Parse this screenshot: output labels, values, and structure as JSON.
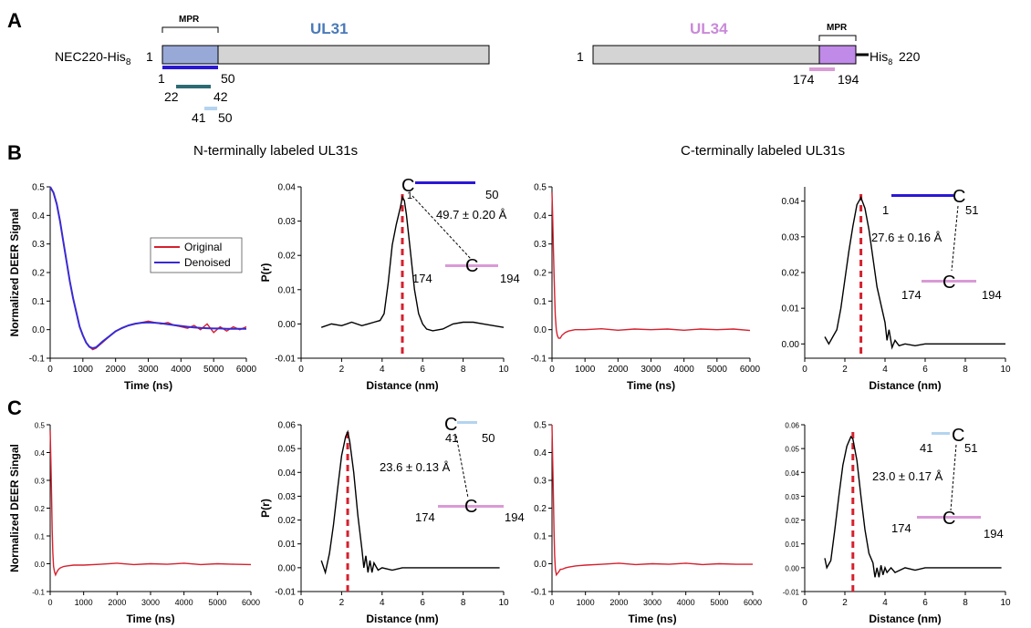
{
  "panel_a": {
    "letter": "A",
    "construct": "NEC220-His",
    "construct_sub": "8",
    "ul31": {
      "name": "UL31",
      "start": "1",
      "mpr": "MPR",
      "seg_1_50": [
        "1",
        "50"
      ],
      "seg_22_42": [
        "22",
        "42"
      ],
      "seg_41_50": [
        "41",
        "50"
      ]
    },
    "ul34": {
      "name": "UL34",
      "start": "1",
      "mpr": "MPR",
      "tag": "His",
      "tag_sub": "8",
      "end": "220",
      "seg_174_194": [
        "174",
        "194"
      ]
    },
    "colors": {
      "ul31_mpr": "#98a9d8",
      "ul34_mpr": "#c08ae8",
      "bar_blue": "#2a17d6",
      "bar_teal": "#2d6b73",
      "bar_lightblue": "#b4d4ef",
      "bar_pink": "#d99ad6",
      "body": "#d4d4d4"
    }
  },
  "panel_b": {
    "letter": "B",
    "left_title": "N-terminally labeled UL31s",
    "right_title": "C-terminally labeled UL31s",
    "legend": [
      "Original",
      "Denoised"
    ]
  },
  "panel_c": {
    "letter": "C"
  },
  "labels": {
    "nlab1": {
      "c": "C",
      "a": "1",
      "b": "50",
      "dist": "49.7 ± 0.20 Å",
      "p": "174",
      "q": "194",
      "c2": "C"
    },
    "clab1": {
      "a": "1",
      "c": "C",
      "b": "51",
      "dist": "27.6 ± 0.16 Å",
      "p": "174",
      "q": "194",
      "c2": "C"
    },
    "nlab2": {
      "c": "C",
      "a": "41",
      "b": "50",
      "dist": "23.6 ± 0.13 Å",
      "p": "174",
      "q": "194",
      "c2": "C"
    },
    "clab2": {
      "a": "41",
      "c": "C",
      "b": "51",
      "dist": "23.0 ± 0.17 Å",
      "p": "174",
      "q": "194",
      "c2": "C"
    }
  },
  "chart_data": [
    {
      "id": "b1",
      "type": "line",
      "xlabel": "Time (ns)",
      "ylabel": "Normalized DEER Signal",
      "xlim": [
        0,
        6000
      ],
      "ylim": [
        -0.1,
        0.5
      ],
      "xticks": [
        0,
        1000,
        2000,
        3000,
        4000,
        5000,
        6000
      ],
      "yticks": [
        -0.1,
        0.0,
        0.1,
        0.2,
        0.3,
        0.4,
        0.5
      ],
      "series": [
        {
          "name": "Original",
          "color": "#d6202e",
          "x": [
            0,
            100,
            200,
            300,
            400,
            500,
            600,
            700,
            800,
            900,
            1000,
            1100,
            1200,
            1300,
            1400,
            1500,
            1600,
            1800,
            2000,
            2200,
            2400,
            2600,
            2800,
            3000,
            3200,
            3400,
            3600,
            3800,
            4000,
            4200,
            4400,
            4600,
            4800,
            5000,
            5200,
            5400,
            5600,
            5800,
            6000
          ],
          "y": [
            0.5,
            0.48,
            0.44,
            0.38,
            0.31,
            0.24,
            0.17,
            0.11,
            0.06,
            0.01,
            -0.02,
            -0.045,
            -0.06,
            -0.07,
            -0.065,
            -0.055,
            -0.045,
            -0.025,
            -0.005,
            0.005,
            0.015,
            0.02,
            0.025,
            0.03,
            0.025,
            0.02,
            0.025,
            0.015,
            0.01,
            0.005,
            0.015,
            0.0,
            0.02,
            -0.01,
            0.01,
            -0.005,
            0.01,
            0.0,
            0.01
          ]
        },
        {
          "name": "Denoised",
          "color": "#3a2ad2",
          "x": [
            0,
            100,
            200,
            300,
            400,
            500,
            600,
            700,
            800,
            900,
            1000,
            1100,
            1200,
            1300,
            1400,
            1500,
            1600,
            1800,
            2000,
            2200,
            2400,
            2600,
            2800,
            3000,
            3200,
            3400,
            3600,
            3800,
            4000,
            4200,
            4400,
            4600,
            4800,
            5000,
            5200,
            5400,
            5600,
            5800,
            6000
          ],
          "y": [
            0.5,
            0.48,
            0.44,
            0.38,
            0.31,
            0.24,
            0.17,
            0.11,
            0.06,
            0.01,
            -0.02,
            -0.045,
            -0.06,
            -0.065,
            -0.062,
            -0.052,
            -0.042,
            -0.024,
            -0.006,
            0.006,
            0.015,
            0.021,
            0.024,
            0.025,
            0.024,
            0.022,
            0.019,
            0.016,
            0.013,
            0.01,
            0.008,
            0.006,
            0.005,
            0.004,
            0.004,
            0.003,
            0.003,
            0.003,
            0.003
          ]
        }
      ]
    },
    {
      "id": "b2",
      "type": "line",
      "xlabel": "Distance (nm)",
      "ylabel": "P(r)",
      "xlim": [
        0,
        10
      ],
      "ylim": [
        -0.01,
        0.04
      ],
      "xticks": [
        0,
        2,
        4,
        6,
        8,
        10
      ],
      "yticks": [
        -0.01,
        0.0,
        0.01,
        0.02,
        0.03,
        0.04
      ],
      "peak": 5.0,
      "series": [
        {
          "name": "",
          "color": "#000000",
          "x": [
            1.0,
            1.5,
            2.0,
            2.5,
            3.0,
            3.3,
            3.6,
            3.9,
            4.1,
            4.3,
            4.5,
            4.7,
            4.9,
            5.0,
            5.1,
            5.2,
            5.4,
            5.6,
            5.8,
            6.0,
            6.2,
            6.5,
            7.0,
            7.5,
            8.0,
            8.5,
            9.0,
            9.5,
            10.0
          ],
          "y": [
            -0.001,
            0.0,
            -0.0005,
            0.0005,
            -0.0005,
            0.0,
            0.0005,
            0.001,
            0.003,
            0.012,
            0.023,
            0.029,
            0.034,
            0.037,
            0.036,
            0.032,
            0.021,
            0.01,
            0.003,
            0.0,
            -0.0015,
            -0.002,
            -0.0015,
            0.0,
            0.0005,
            0.0005,
            0.0,
            -0.0005,
            -0.001
          ]
        }
      ]
    },
    {
      "id": "b3",
      "type": "line",
      "xlabel": "Time (ns)",
      "ylabel": "",
      "xlim": [
        0,
        6000
      ],
      "ylim": [
        -0.1,
        0.5
      ],
      "xticks": [
        0,
        1000,
        2000,
        3000,
        4000,
        5000,
        6000
      ],
      "yticks": [
        -0.1,
        0.0,
        0.1,
        0.2,
        0.3,
        0.4,
        0.5
      ],
      "series": [
        {
          "name": "",
          "color": "#d6202e",
          "x": [
            0,
            20,
            40,
            60,
            80,
            100,
            130,
            160,
            200,
            250,
            300,
            400,
            500,
            700,
            1000,
            1500,
            2000,
            2500,
            3000,
            3500,
            4000,
            4500,
            5000,
            5500,
            6000
          ],
          "y": [
            0.48,
            0.4,
            0.3,
            0.2,
            0.12,
            0.05,
            0.0,
            -0.02,
            -0.03,
            -0.03,
            -0.02,
            -0.01,
            -0.005,
            0.0,
            0.0,
            0.003,
            -0.002,
            0.002,
            0.0,
            0.002,
            -0.002,
            0.002,
            0.0,
            0.002,
            -0.003
          ]
        }
      ]
    },
    {
      "id": "b4",
      "type": "line",
      "xlabel": "Distance (nm)",
      "ylabel": "",
      "xlim": [
        0,
        10
      ],
      "ylim": [
        -0.004,
        0.044
      ],
      "xticks": [
        0,
        2,
        4,
        6,
        8,
        10
      ],
      "yticks": [
        0.0,
        0.01,
        0.02,
        0.03,
        0.04
      ],
      "peak": 2.8,
      "series": [
        {
          "name": "",
          "color": "#000000",
          "x": [
            1.0,
            1.2,
            1.4,
            1.6,
            1.8,
            2.0,
            2.2,
            2.4,
            2.6,
            2.8,
            3.0,
            3.2,
            3.4,
            3.6,
            3.8,
            4.0,
            4.1,
            4.2,
            4.35,
            4.5,
            4.7,
            5.0,
            5.5,
            6.0,
            7.0,
            8.0,
            9.0,
            10.0
          ],
          "y": [
            0.002,
            0.0,
            0.002,
            0.004,
            0.01,
            0.018,
            0.026,
            0.033,
            0.039,
            0.041,
            0.038,
            0.032,
            0.024,
            0.016,
            0.011,
            0.006,
            0.001,
            0.004,
            -0.001,
            0.001,
            -0.0005,
            0.0,
            -0.0005,
            0.0,
            0.0,
            0.0,
            0.0,
            0.0
          ]
        }
      ]
    },
    {
      "id": "c1",
      "type": "line",
      "xlabel": "Time (ns)",
      "ylabel": "Normalized DEER Singal",
      "xlim": [
        0,
        6000
      ],
      "ylim": [
        -0.1,
        0.5
      ],
      "xticks": [
        0,
        1000,
        2000,
        3000,
        4000,
        5000,
        6000
      ],
      "yticks": [
        -0.1,
        0.0,
        0.1,
        0.2,
        0.3,
        0.4,
        0.5
      ],
      "series": [
        {
          "name": "",
          "color": "#d6202e",
          "x": [
            0,
            20,
            40,
            60,
            80,
            100,
            130,
            160,
            200,
            250,
            300,
            400,
            500,
            700,
            1000,
            1500,
            2000,
            2500,
            3000,
            3500,
            4000,
            4500,
            5000,
            5500,
            6000
          ],
          "y": [
            0.48,
            0.38,
            0.25,
            0.12,
            0.04,
            -0.01,
            -0.03,
            -0.04,
            -0.03,
            -0.02,
            -0.015,
            -0.01,
            -0.008,
            -0.005,
            -0.005,
            -0.002,
            0.002,
            -0.003,
            0.0,
            -0.002,
            0.002,
            -0.003,
            0.0,
            -0.002,
            -0.003
          ]
        }
      ]
    },
    {
      "id": "c2",
      "type": "line",
      "xlabel": "Distance (nm)",
      "ylabel": "P(r)",
      "xlim": [
        0,
        10
      ],
      "ylim": [
        -0.01,
        0.06
      ],
      "xticks": [
        0,
        2,
        4,
        6,
        8,
        10
      ],
      "yticks": [
        -0.01,
        0.0,
        0.01,
        0.02,
        0.03,
        0.04,
        0.05,
        0.06
      ],
      "peak": 2.3,
      "series": [
        {
          "name": "",
          "color": "#000000",
          "x": [
            1.0,
            1.2,
            1.4,
            1.6,
            1.8,
            2.0,
            2.2,
            2.3,
            2.4,
            2.6,
            2.8,
            3.0,
            3.1,
            3.2,
            3.3,
            3.4,
            3.5,
            3.6,
            3.8,
            4.0,
            4.5,
            5.0,
            6.0,
            7.0,
            8.0,
            9.0,
            9.8
          ],
          "y": [
            0.003,
            -0.002,
            0.006,
            0.018,
            0.033,
            0.047,
            0.055,
            0.057,
            0.053,
            0.04,
            0.022,
            0.008,
            0.0,
            0.005,
            -0.002,
            0.003,
            -0.002,
            0.002,
            -0.001,
            0.0,
            -0.001,
            0.0,
            0.0,
            0.0,
            0.0,
            0.0,
            0.0
          ]
        }
      ]
    },
    {
      "id": "c3",
      "type": "line",
      "xlabel": "Time (ns)",
      "ylabel": "",
      "xlim": [
        0,
        6000
      ],
      "ylim": [
        -0.1,
        0.5
      ],
      "xticks": [
        0,
        1000,
        2000,
        3000,
        4000,
        5000,
        6000
      ],
      "yticks": [
        -0.1,
        0.0,
        0.1,
        0.2,
        0.3,
        0.4,
        0.5
      ],
      "series": [
        {
          "name": "",
          "color": "#d6202e",
          "x": [
            0,
            20,
            40,
            60,
            80,
            100,
            130,
            160,
            200,
            250,
            300,
            400,
            500,
            700,
            1000,
            1500,
            2000,
            2500,
            3000,
            3500,
            4000,
            4500,
            5000,
            5500,
            6000
          ],
          "y": [
            0.5,
            0.38,
            0.25,
            0.12,
            0.03,
            -0.02,
            -0.04,
            -0.035,
            -0.03,
            -0.02,
            -0.02,
            -0.015,
            -0.012,
            -0.008,
            -0.005,
            -0.002,
            0.002,
            -0.003,
            0.0,
            -0.002,
            0.002,
            -0.003,
            0.0,
            -0.002,
            -0.002
          ]
        }
      ]
    },
    {
      "id": "c4",
      "type": "line",
      "xlabel": "Distance (nm)",
      "ylabel": "",
      "xlim": [
        0,
        10
      ],
      "ylim": [
        -0.01,
        0.06
      ],
      "xticks": [
        0,
        2,
        4,
        6,
        8,
        10
      ],
      "yticks": [
        -0.01,
        0.0,
        0.01,
        0.02,
        0.03,
        0.04,
        0.05,
        0.06
      ],
      "peak": 2.4,
      "series": [
        {
          "name": "",
          "color": "#000000",
          "x": [
            1.0,
            1.1,
            1.3,
            1.5,
            1.7,
            1.9,
            2.1,
            2.3,
            2.4,
            2.6,
            2.8,
            3.0,
            3.2,
            3.4,
            3.5,
            3.6,
            3.7,
            3.8,
            3.9,
            4.0,
            4.1,
            4.3,
            4.5,
            5.0,
            5.5,
            6.0,
            7.0,
            8.0,
            9.0,
            9.8
          ],
          "y": [
            0.004,
            0.0,
            0.003,
            0.016,
            0.03,
            0.043,
            0.051,
            0.055,
            0.054,
            0.045,
            0.03,
            0.016,
            0.006,
            0.002,
            -0.004,
            0.0,
            -0.004,
            0.001,
            -0.003,
            0.0,
            -0.002,
            0.0,
            -0.002,
            0.0,
            -0.001,
            0.0,
            0.0,
            0.0,
            0.0,
            0.0
          ]
        }
      ]
    }
  ]
}
